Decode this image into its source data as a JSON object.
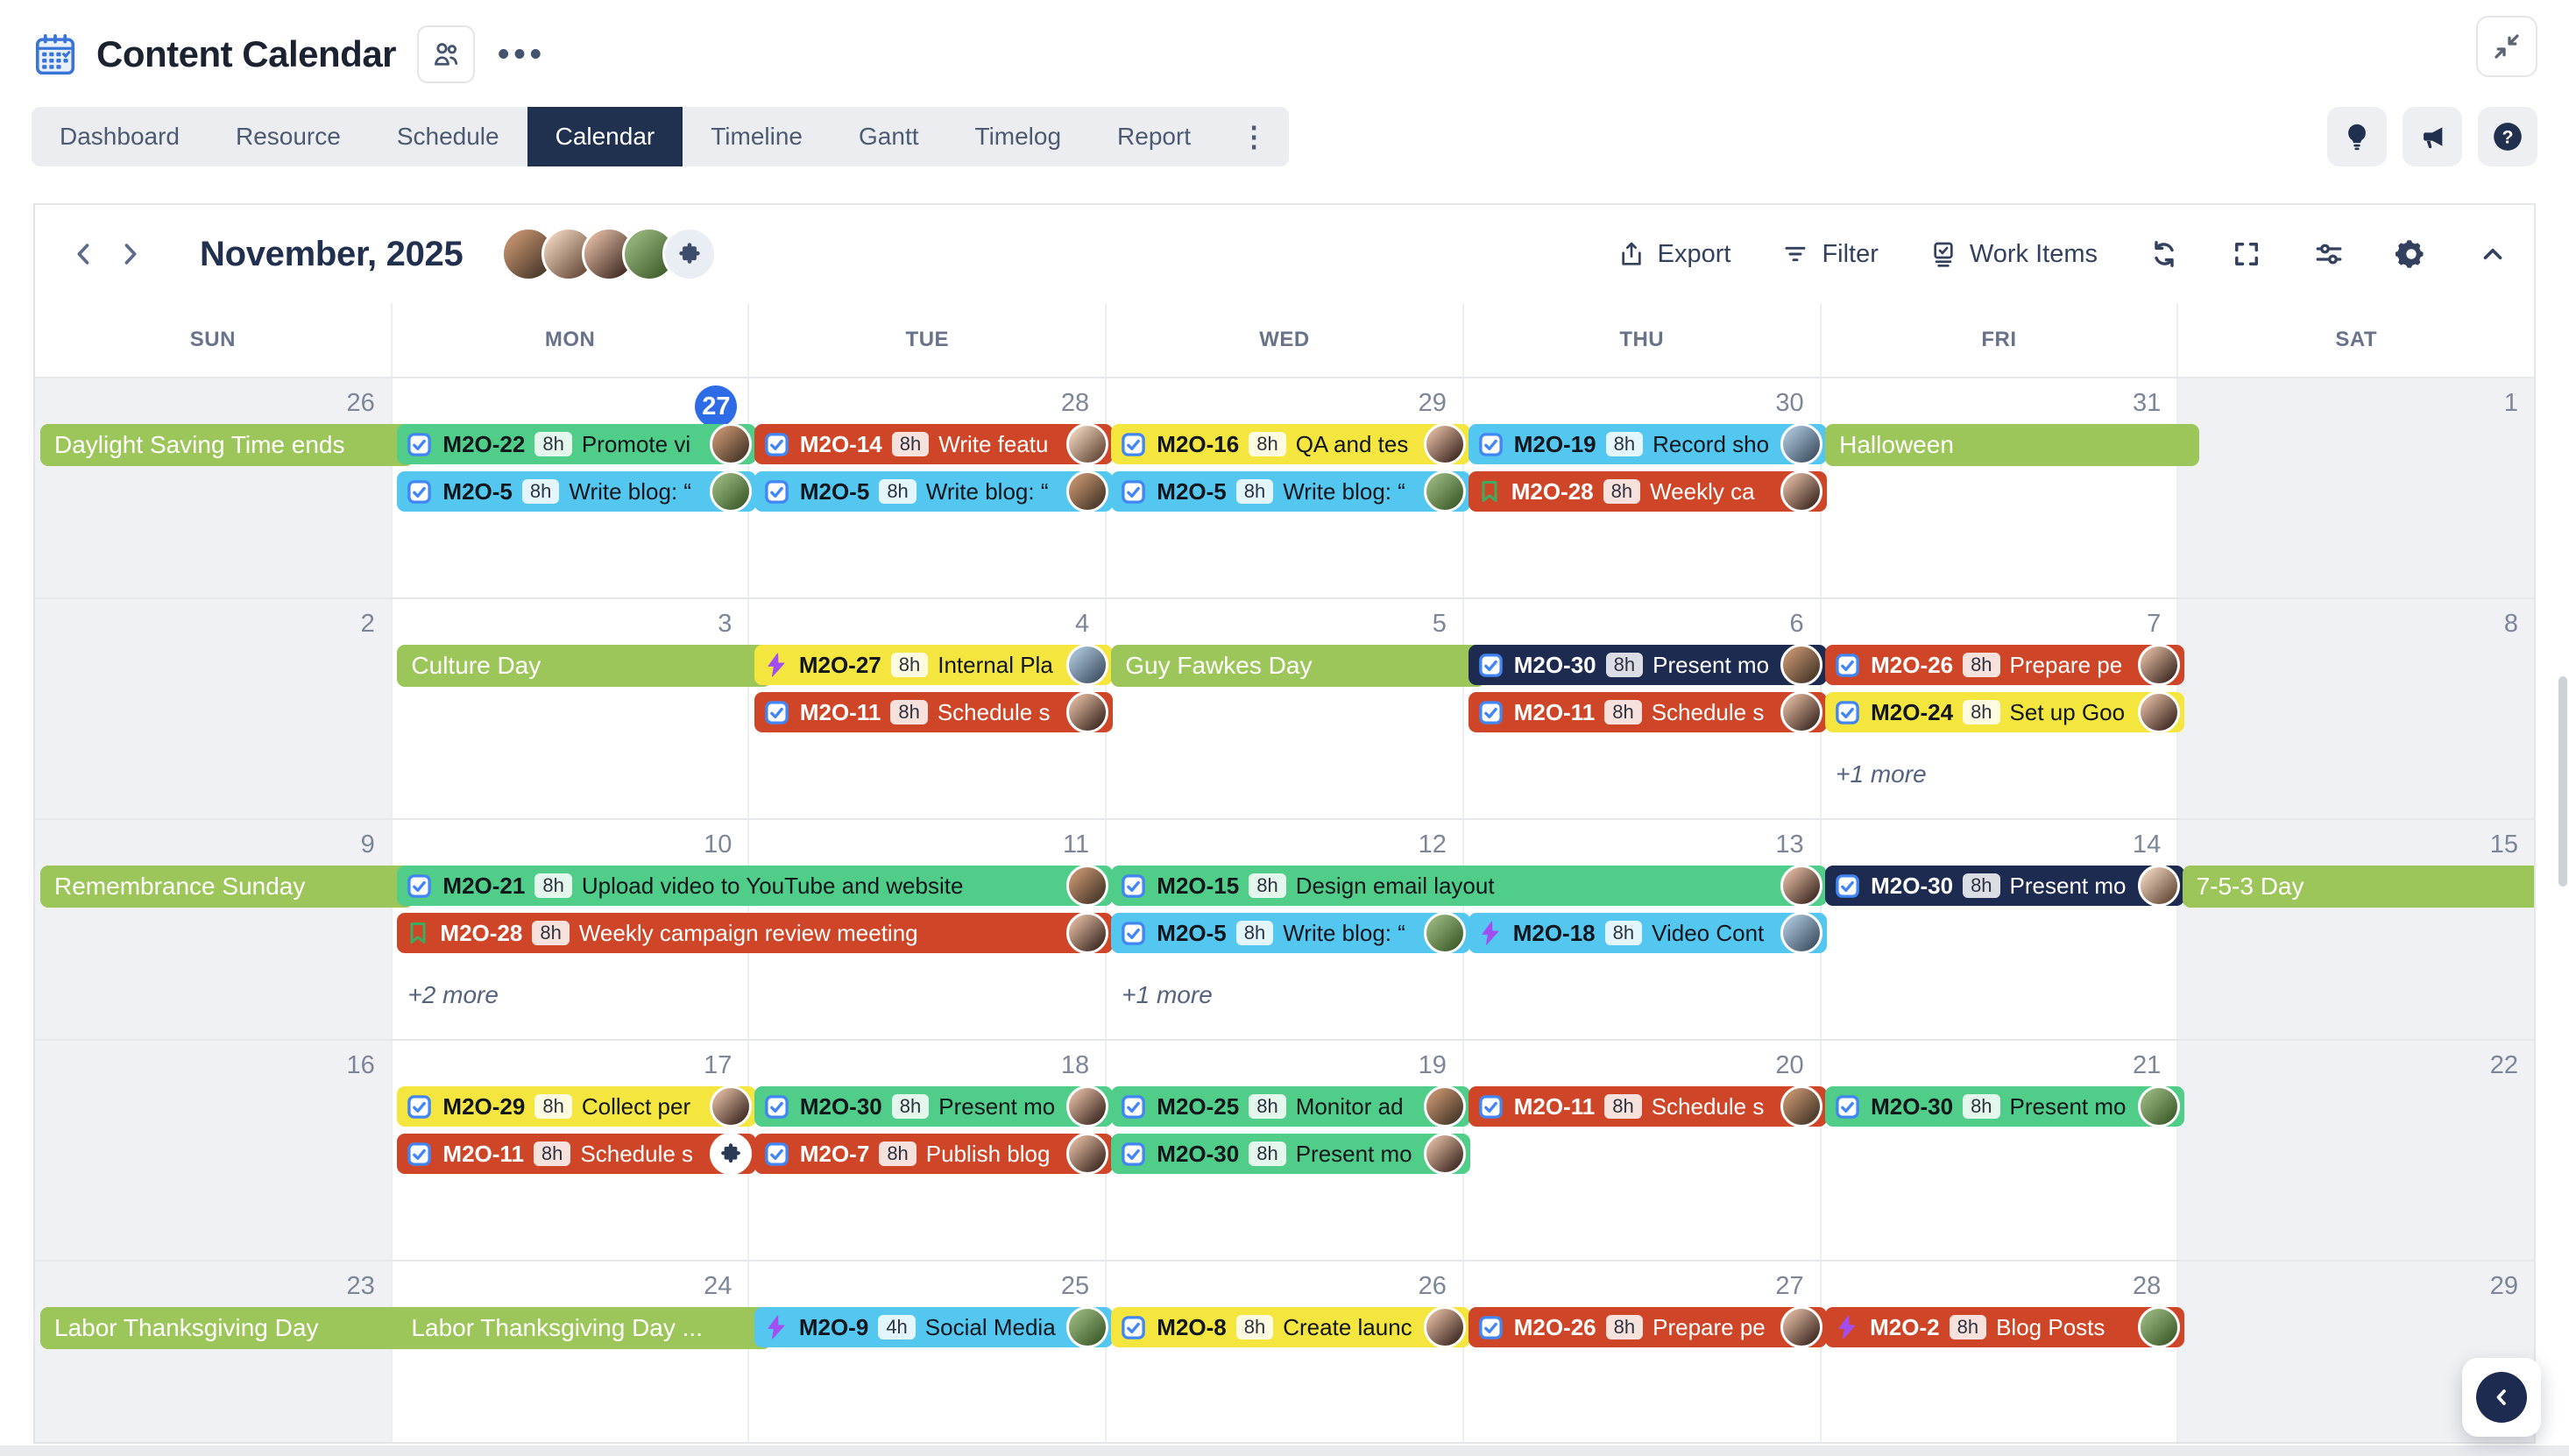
{
  "header": {
    "title": "Content Calendar",
    "more_label": "•••"
  },
  "tabs": {
    "items": [
      "Dashboard",
      "Resource",
      "Schedule",
      "Calendar",
      "Timeline",
      "Gantt",
      "Timelog",
      "Report"
    ],
    "active": "Calendar"
  },
  "toolbar": {
    "month": "November, 2025",
    "export_label": "Export",
    "filter_label": "Filter",
    "work_items_label": "Work Items"
  },
  "weekday_headers": [
    "SUN",
    "MON",
    "TUE",
    "WED",
    "THU",
    "FRI",
    "SAT"
  ],
  "colors": {
    "event_green": "#50cd89",
    "event_cyan": "#54c7f0",
    "event_yellow": "#f4e53f",
    "event_red": "#cf4527",
    "event_navy": "#1d2b50",
    "holiday_green": "#9dc65a",
    "today_blue": "#2e6be6",
    "active_tab": "#20304f"
  },
  "weeks": [
    {
      "days": [
        {
          "n": "26",
          "weekend": true
        },
        {
          "n": "27",
          "today": true
        },
        {
          "n": "28"
        },
        {
          "n": "29"
        },
        {
          "n": "30"
        },
        {
          "n": "31"
        },
        {
          "n": "1",
          "weekend": true
        }
      ],
      "items": [
        {
          "type": "holiday",
          "col": 0,
          "slot": 0,
          "text": "Daylight Saving Time ends"
        },
        {
          "type": "event",
          "col": 1,
          "slot": 0,
          "key": "M2O-22",
          "icon": "task",
          "hours": "8h",
          "text": "Promote vi",
          "color": "green",
          "avatar": "m1"
        },
        {
          "type": "event",
          "col": 1,
          "slot": 1,
          "key": "M2O-5",
          "icon": "task",
          "hours": "8h",
          "text": "Write blog: “",
          "color": "cyan",
          "avatar": "w3"
        },
        {
          "type": "event",
          "col": 2,
          "slot": 0,
          "key": "M2O-14",
          "icon": "task",
          "hours": "8h",
          "text": "Write featu",
          "color": "red",
          "avatar": "w2"
        },
        {
          "type": "event",
          "col": 2,
          "slot": 1,
          "key": "M2O-5",
          "icon": "task",
          "hours": "8h",
          "text": "Write blog: “",
          "color": "cyan",
          "avatar": "m1"
        },
        {
          "type": "event",
          "col": 3,
          "slot": 0,
          "key": "M2O-16",
          "icon": "task",
          "hours": "8h",
          "text": "QA and tes",
          "color": "yellow",
          "avatar": "w1"
        },
        {
          "type": "event",
          "col": 3,
          "slot": 1,
          "key": "M2O-5",
          "icon": "task",
          "hours": "8h",
          "text": "Write blog: “",
          "color": "cyan",
          "avatar": "w3"
        },
        {
          "type": "event",
          "col": 4,
          "slot": 0,
          "key": "M2O-19",
          "icon": "task",
          "hours": "8h",
          "text": "Record sho",
          "color": "cyan",
          "avatar": "m2"
        },
        {
          "type": "event",
          "col": 4,
          "slot": 1,
          "key": "M2O-28",
          "icon": "story",
          "hours": "8h",
          "text": "Weekly ca",
          "color": "red",
          "avatar": "w1"
        },
        {
          "type": "holiday",
          "col": 5,
          "slot": 0,
          "text": "Halloween"
        }
      ]
    },
    {
      "days": [
        {
          "n": "2",
          "weekend": true
        },
        {
          "n": "3"
        },
        {
          "n": "4"
        },
        {
          "n": "5"
        },
        {
          "n": "6"
        },
        {
          "n": "7"
        },
        {
          "n": "8",
          "weekend": true
        }
      ],
      "items": [
        {
          "type": "holiday",
          "col": 1,
          "slot": 0,
          "text": "Culture Day"
        },
        {
          "type": "event",
          "col": 2,
          "slot": 0,
          "key": "M2O-27",
          "icon": "epic",
          "hours": "8h",
          "text": "Internal Pla",
          "color": "yellow",
          "avatar": "m2"
        },
        {
          "type": "event",
          "col": 2,
          "slot": 1,
          "key": "M2O-11",
          "icon": "task",
          "hours": "8h",
          "text": "Schedule s",
          "color": "red",
          "avatar": "w1"
        },
        {
          "type": "holiday",
          "col": 3,
          "slot": 0,
          "text": "Guy Fawkes Day"
        },
        {
          "type": "event",
          "col": 4,
          "slot": 0,
          "key": "M2O-30",
          "icon": "task",
          "hours": "8h",
          "text": "Present mo",
          "color": "navy",
          "avatar": "m1"
        },
        {
          "type": "event",
          "col": 4,
          "slot": 1,
          "key": "M2O-11",
          "icon": "task",
          "hours": "8h",
          "text": "Schedule s",
          "color": "red",
          "avatar": "w1"
        },
        {
          "type": "event",
          "col": 5,
          "slot": 0,
          "key": "M2O-26",
          "icon": "task",
          "hours": "8h",
          "text": "Prepare pe",
          "color": "red",
          "avatar": "w1"
        },
        {
          "type": "event",
          "col": 5,
          "slot": 1,
          "key": "M2O-24",
          "icon": "task",
          "hours": "8h",
          "text": "Set up Goo",
          "color": "yellow",
          "avatar": "w1"
        },
        {
          "type": "more",
          "col": 5,
          "text": "+1 more"
        }
      ]
    },
    {
      "days": [
        {
          "n": "9",
          "weekend": true
        },
        {
          "n": "10"
        },
        {
          "n": "11"
        },
        {
          "n": "12"
        },
        {
          "n": "13"
        },
        {
          "n": "14"
        },
        {
          "n": "15",
          "weekend": true
        }
      ],
      "items": [
        {
          "type": "holiday",
          "col": 0,
          "slot": 0,
          "text": "Remembrance Sunday"
        },
        {
          "type": "event",
          "col": 1,
          "span": 2,
          "slot": 0,
          "key": "M2O-21",
          "icon": "task",
          "hours": "8h",
          "text": "Upload video to YouTube and website",
          "color": "green",
          "avatar": "m1"
        },
        {
          "type": "event",
          "col": 1,
          "span": 2,
          "slot": 1,
          "key": "M2O-28",
          "icon": "story",
          "hours": "8h",
          "text": "Weekly campaign review meeting",
          "color": "red",
          "avatar": "w1"
        },
        {
          "type": "more",
          "col": 1,
          "text": "+2 more"
        },
        {
          "type": "event",
          "col": 3,
          "span": 2,
          "slot": 0,
          "key": "M2O-15",
          "icon": "task",
          "hours": "8h",
          "text": "Design email layout",
          "color": "green",
          "avatar": "w1"
        },
        {
          "type": "event",
          "col": 3,
          "slot": 1,
          "key": "M2O-5",
          "icon": "task",
          "hours": "8h",
          "text": "Write blog: “",
          "color": "cyan",
          "avatar": "w3"
        },
        {
          "type": "event",
          "col": 4,
          "slot": 1,
          "key": "M2O-18",
          "icon": "epic",
          "hours": "8h",
          "text": "Video Cont",
          "color": "cyan",
          "avatar": "m2"
        },
        {
          "type": "more",
          "col": 3,
          "text": "+1 more"
        },
        {
          "type": "event",
          "col": 5,
          "slot": 0,
          "key": "M2O-30",
          "icon": "task",
          "hours": "8h",
          "text": "Present mo",
          "color": "navy",
          "avatar": "w2"
        },
        {
          "type": "holiday",
          "col": 6,
          "slot": 0,
          "text": "7-5-3 Day"
        }
      ]
    },
    {
      "days": [
        {
          "n": "16",
          "weekend": true
        },
        {
          "n": "17"
        },
        {
          "n": "18"
        },
        {
          "n": "19"
        },
        {
          "n": "20"
        },
        {
          "n": "21"
        },
        {
          "n": "22",
          "weekend": true
        }
      ],
      "items": [
        {
          "type": "event",
          "col": 1,
          "slot": 0,
          "key": "M2O-29",
          "icon": "task",
          "hours": "8h",
          "text": "Collect per",
          "color": "yellow",
          "avatar": "w1"
        },
        {
          "type": "event",
          "col": 1,
          "slot": 1,
          "key": "M2O-11",
          "icon": "task",
          "hours": "8h",
          "text": "Schedule s",
          "color": "red",
          "avatar": "puzzle"
        },
        {
          "type": "event",
          "col": 2,
          "slot": 0,
          "key": "M2O-30",
          "icon": "task",
          "hours": "8h",
          "text": "Present mo",
          "color": "green",
          "avatar": "w1"
        },
        {
          "type": "event",
          "col": 2,
          "slot": 1,
          "key": "M2O-7",
          "icon": "task",
          "hours": "8h",
          "text": "Publish blog",
          "color": "red",
          "avatar": "w1"
        },
        {
          "type": "event",
          "col": 3,
          "slot": 0,
          "key": "M2O-25",
          "icon": "task",
          "hours": "8h",
          "text": "Monitor ad",
          "color": "green",
          "avatar": "m1"
        },
        {
          "type": "event",
          "col": 3,
          "slot": 1,
          "key": "M2O-30",
          "icon": "task",
          "hours": "8h",
          "text": "Present mo",
          "color": "green",
          "avatar": "w1"
        },
        {
          "type": "event",
          "col": 4,
          "slot": 0,
          "key": "M2O-11",
          "icon": "task",
          "hours": "8h",
          "text": "Schedule s",
          "color": "red",
          "avatar": "m1"
        },
        {
          "type": "event",
          "col": 5,
          "slot": 0,
          "key": "M2O-30",
          "icon": "task",
          "hours": "8h",
          "text": "Present mo",
          "color": "green",
          "avatar": "w3"
        }
      ]
    },
    {
      "days": [
        {
          "n": "23",
          "weekend": true
        },
        {
          "n": "24"
        },
        {
          "n": "25"
        },
        {
          "n": "26"
        },
        {
          "n": "27"
        },
        {
          "n": "28"
        },
        {
          "n": "29",
          "weekend": true
        }
      ],
      "items": [
        {
          "type": "holiday",
          "col": 0,
          "slot": 0,
          "text": "Labor Thanksgiving Day"
        },
        {
          "type": "holiday",
          "col": 1,
          "slot": 0,
          "text": "Labor Thanksgiving Day ..."
        },
        {
          "type": "event",
          "col": 2,
          "slot": 0,
          "key": "M2O-9",
          "icon": "epic",
          "hours": "4h",
          "text": "Social Media",
          "color": "cyan",
          "avatar": "w3"
        },
        {
          "type": "event",
          "col": 3,
          "slot": 0,
          "key": "M2O-8",
          "icon": "task",
          "hours": "8h",
          "text": "Create launc",
          "color": "yellow",
          "avatar": "w1"
        },
        {
          "type": "event",
          "col": 4,
          "slot": 0,
          "key": "M2O-26",
          "icon": "task",
          "hours": "8h",
          "text": "Prepare pe",
          "color": "red",
          "avatar": "w1"
        },
        {
          "type": "event",
          "col": 5,
          "slot": 0,
          "key": "M2O-2",
          "icon": "epic",
          "hours": "8h",
          "text": "Blog Posts",
          "color": "red",
          "avatar": "w3"
        }
      ]
    }
  ]
}
